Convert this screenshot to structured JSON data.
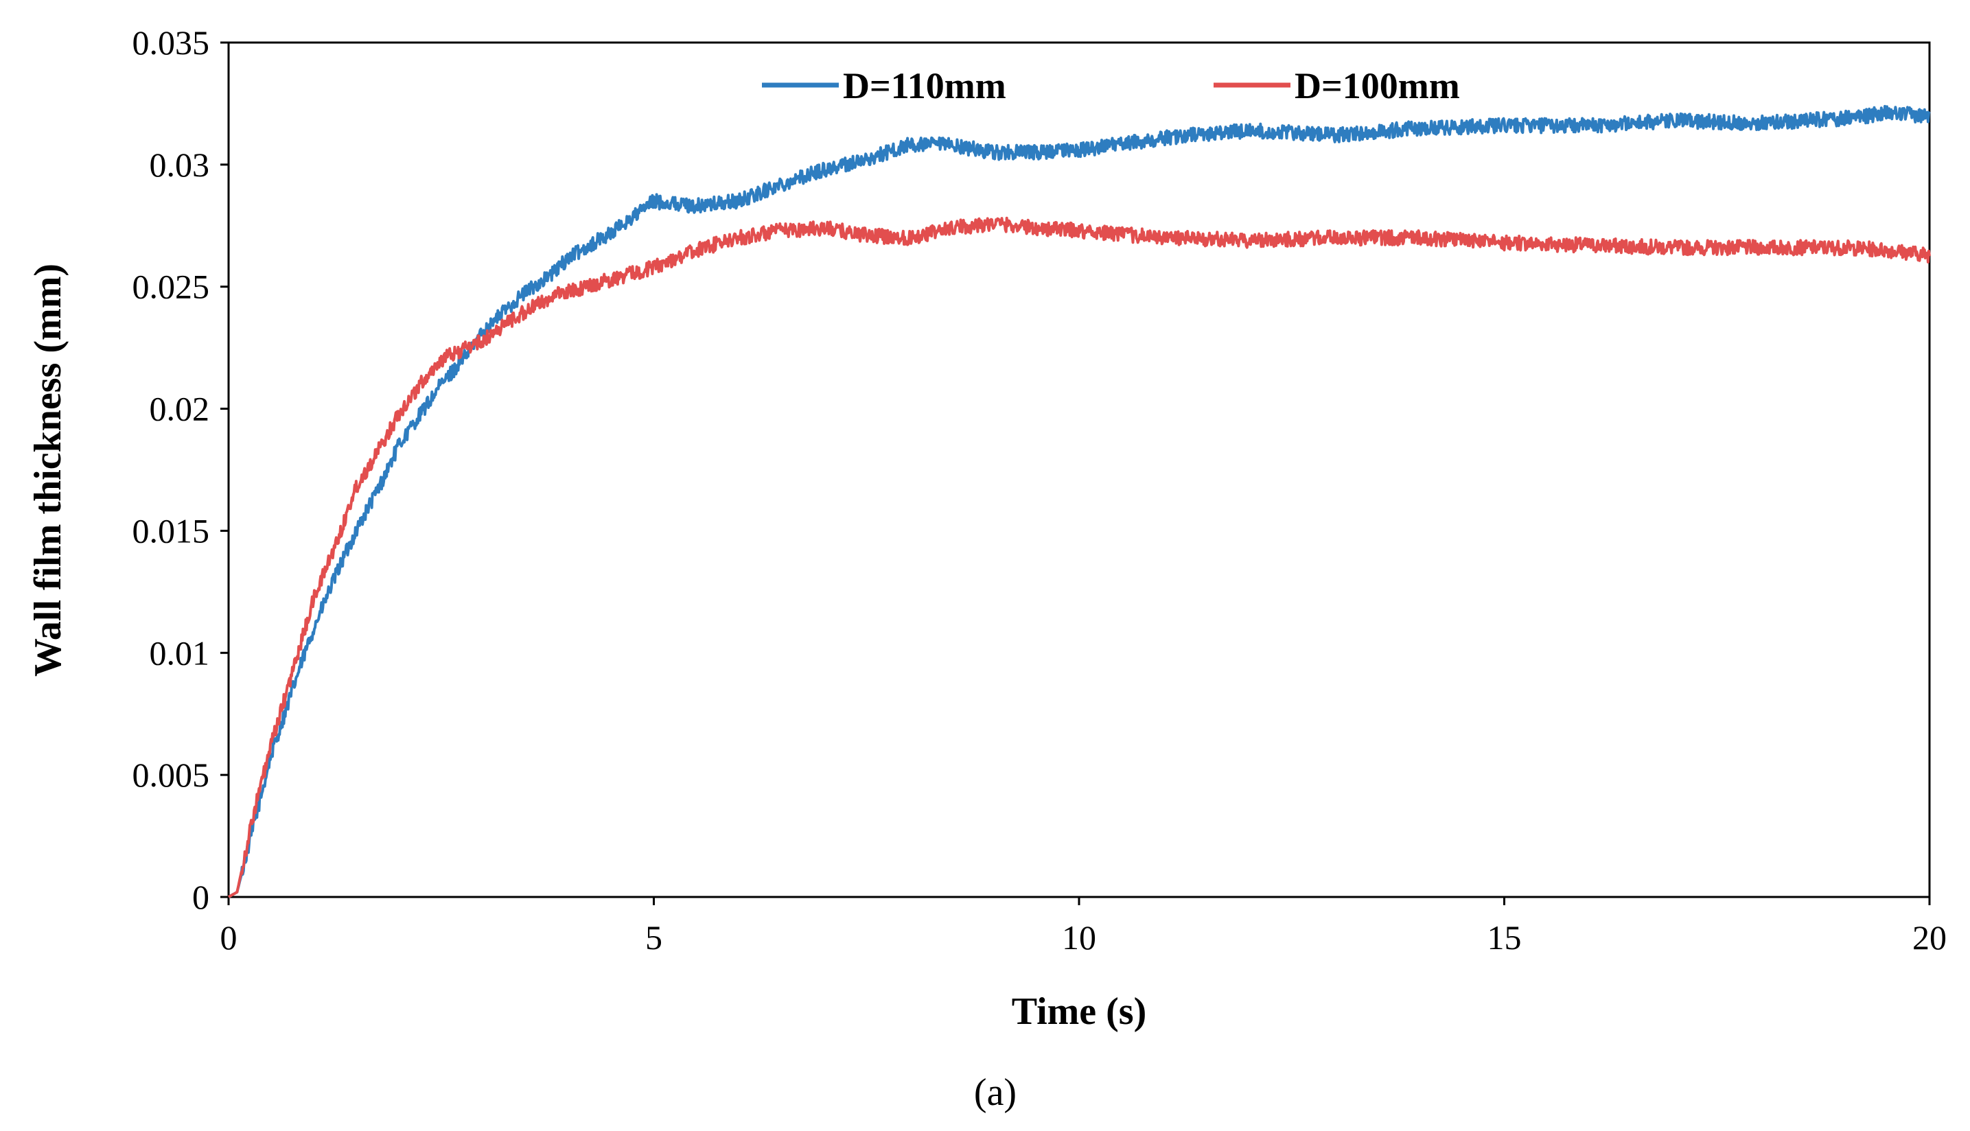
{
  "chart_data": {
    "type": "line",
    "title": "",
    "xlabel": "Time (s)",
    "ylabel": "Wall film thickness (mm)",
    "xlim": [
      0,
      20
    ],
    "ylim": [
      0,
      0.035
    ],
    "xticks": [
      "0",
      "5",
      "10",
      "15",
      "20"
    ],
    "yticks": [
      "0",
      "0.005",
      "0.01",
      "0.015",
      "0.02",
      "0.025",
      "0.03",
      "0.035"
    ],
    "grid": false,
    "legend_position": "top-center",
    "series": [
      {
        "name": "D=110mm",
        "color": "#2E7DC0",
        "x": [
          0,
          0.1,
          0.3,
          0.5,
          0.8,
          1.0,
          1.3,
          1.5,
          1.8,
          2.0,
          2.3,
          2.5,
          2.8,
          3.0,
          3.3,
          3.5,
          3.8,
          4.0,
          4.5,
          5.0,
          5.5,
          6.0,
          6.5,
          7.0,
          7.5,
          8.0,
          8.5,
          9.0,
          9.5,
          10.0,
          11.0,
          12.0,
          13.0,
          14.0,
          15.0,
          16.0,
          17.0,
          18.0,
          19.0,
          19.5,
          20.0
        ],
        "values": [
          0,
          0.0002,
          0.003,
          0.0058,
          0.009,
          0.011,
          0.0135,
          0.015,
          0.017,
          0.0185,
          0.02,
          0.021,
          0.0222,
          0.0232,
          0.0242,
          0.0248,
          0.0255,
          0.0262,
          0.0272,
          0.0285,
          0.0283,
          0.0285,
          0.0292,
          0.0298,
          0.0302,
          0.0308,
          0.0308,
          0.0305,
          0.0305,
          0.0306,
          0.0311,
          0.0314,
          0.0312,
          0.0315,
          0.0316,
          0.0316,
          0.0318,
          0.0317,
          0.0319,
          0.0321,
          0.032
        ]
      },
      {
        "name": "D=100mm",
        "color": "#E24E4E",
        "x": [
          0,
          0.1,
          0.3,
          0.5,
          0.8,
          1.0,
          1.3,
          1.5,
          1.8,
          2.0,
          2.3,
          2.5,
          2.8,
          3.0,
          3.3,
          3.5,
          3.8,
          4.0,
          4.5,
          5.0,
          5.5,
          6.0,
          6.5,
          7.0,
          7.5,
          8.0,
          8.5,
          9.0,
          9.5,
          10.0,
          11.0,
          12.0,
          13.0,
          14.0,
          15.0,
          16.0,
          17.0,
          18.0,
          19.0,
          19.5,
          20.0
        ],
        "values": [
          0,
          0.0002,
          0.0035,
          0.0062,
          0.0098,
          0.0122,
          0.0148,
          0.0168,
          0.0185,
          0.0198,
          0.0212,
          0.022,
          0.0225,
          0.0228,
          0.0236,
          0.024,
          0.0246,
          0.0248,
          0.0253,
          0.0258,
          0.0265,
          0.027,
          0.0273,
          0.0274,
          0.0271,
          0.027,
          0.0274,
          0.0276,
          0.0274,
          0.0273,
          0.027,
          0.0269,
          0.027,
          0.027,
          0.0268,
          0.0267,
          0.0266,
          0.0266,
          0.0266,
          0.0265,
          0.0263
        ]
      }
    ]
  },
  "caption": "(a)"
}
